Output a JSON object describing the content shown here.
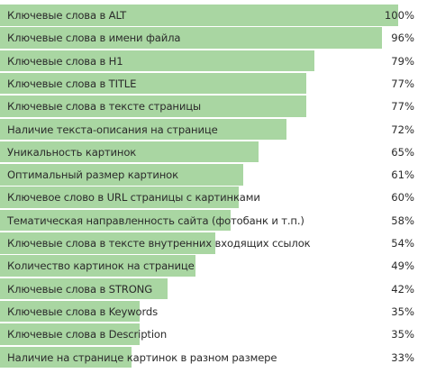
{
  "chart_data": {
    "type": "bar",
    "orientation": "horizontal",
    "bar_color": "#a9d6a2",
    "categories": [
      "Ключевые слова в ALT",
      "Ключевые слова в имени файла",
      "Ключевые слова в H1",
      "Ключевые слова в TITLE",
      "Ключевые слова в тексте страницы",
      "Наличие текста-описания на странице",
      "Уникальность картинок",
      "Оптимальный размер картинок",
      "Ключевое слово в URL страницы с картинками",
      "Тематическая направленность сайта (фотобанк и т.п.)",
      "Ключевые слова в тексте внутренних входящих ссылок",
      "Количество картинок на странице",
      "Ключевые слова в STRONG",
      "Ключевые слова в Keywords",
      "Ключевые слова в Description",
      "Наличие на странице картинок в разном размере"
    ],
    "values": [
      100,
      96,
      79,
      77,
      77,
      72,
      65,
      61,
      60,
      58,
      54,
      49,
      42,
      35,
      35,
      33
    ],
    "value_labels": [
      "100%",
      "96%",
      "79%",
      "77%",
      "77%",
      "72%",
      "65%",
      "61%",
      "60%",
      "58%",
      "54%",
      "49%",
      "42%",
      "35%",
      "35%",
      "33%"
    ],
    "xlim": [
      0,
      100
    ]
  }
}
